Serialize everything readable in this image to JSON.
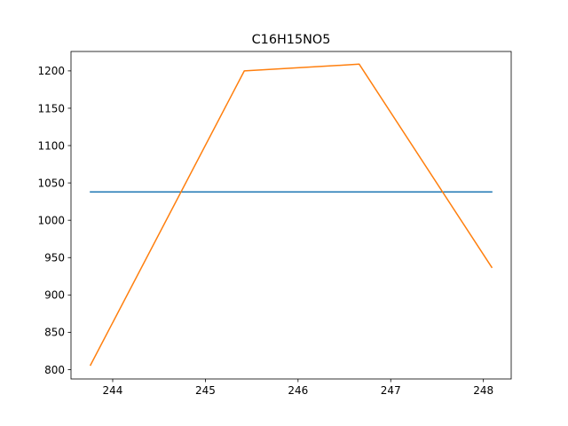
{
  "chart_data": {
    "type": "line",
    "title": "C16H15NO5",
    "xlabel": "",
    "ylabel": "",
    "xlim": [
      243.55,
      248.3
    ],
    "ylim": [
      787.5,
      1226.0
    ],
    "xticks": [
      244,
      245,
      246,
      247,
      248
    ],
    "yticks": [
      800,
      850,
      900,
      950,
      1000,
      1050,
      1100,
      1150,
      1200
    ],
    "grid": false,
    "series": [
      {
        "color": "#1f77b4",
        "x": [
          243.76,
          248.09
        ],
        "y": [
          1038,
          1038
        ]
      },
      {
        "color": "#ff7f0e",
        "x": [
          243.76,
          245.42,
          246.66,
          248.09
        ],
        "y": [
          806,
          1200,
          1209,
          937
        ]
      }
    ]
  }
}
